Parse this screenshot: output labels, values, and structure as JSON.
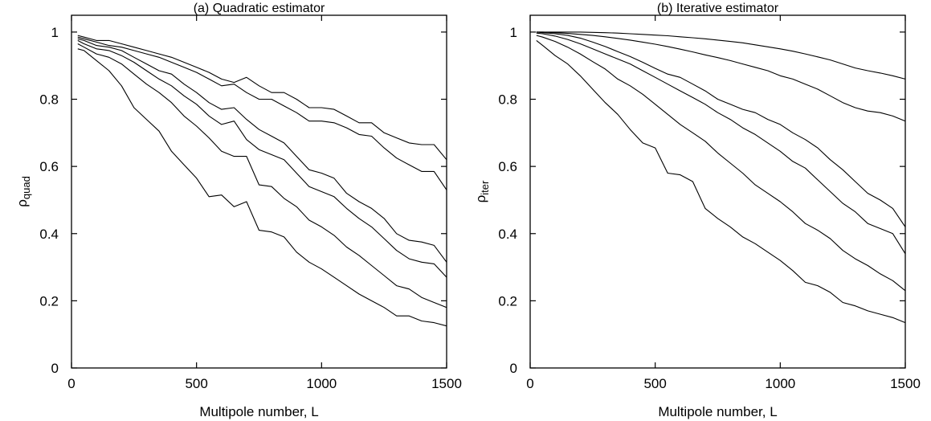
{
  "chart_data": [
    {
      "type": "line",
      "title": "(a) Quadratic estimator",
      "xlabel": "Multipole number, L",
      "ylabel": "ρ",
      "ylabel_sub": "quad",
      "xlim": [
        0,
        1500
      ],
      "ylim": [
        0,
        1.05
      ],
      "xticks": [
        0,
        500,
        1000,
        1500
      ],
      "yticks": [
        0,
        0.2,
        0.4,
        0.6,
        0.8,
        1
      ],
      "grid": false,
      "color": "#000000",
      "series": [
        {
          "x": [
            25,
            50,
            100,
            150,
            200,
            250,
            300,
            350,
            400,
            450,
            500,
            550,
            600,
            650,
            700,
            750,
            800,
            850,
            900,
            950,
            1000,
            1050,
            1100,
            1150,
            1200,
            1250,
            1300,
            1350,
            1400,
            1450,
            1500
          ],
          "y": [
            0.99,
            0.985,
            0.975,
            0.975,
            0.965,
            0.955,
            0.945,
            0.935,
            0.925,
            0.91,
            0.895,
            0.88,
            0.86,
            0.85,
            0.865,
            0.84,
            0.82,
            0.82,
            0.8,
            0.775,
            0.775,
            0.77,
            0.75,
            0.73,
            0.73,
            0.7,
            0.685,
            0.67,
            0.665,
            0.665,
            0.62
          ]
        },
        {
          "x": [
            25,
            50,
            100,
            150,
            200,
            250,
            300,
            350,
            400,
            450,
            500,
            550,
            600,
            650,
            700,
            750,
            800,
            850,
            900,
            950,
            1000,
            1050,
            1100,
            1150,
            1200,
            1250,
            1300,
            1350,
            1400,
            1450,
            1500
          ],
          "y": [
            0.985,
            0.98,
            0.97,
            0.96,
            0.955,
            0.945,
            0.935,
            0.925,
            0.91,
            0.895,
            0.88,
            0.86,
            0.84,
            0.845,
            0.82,
            0.8,
            0.8,
            0.78,
            0.76,
            0.735,
            0.735,
            0.73,
            0.715,
            0.695,
            0.69,
            0.655,
            0.625,
            0.605,
            0.585,
            0.585,
            0.53
          ]
        },
        {
          "x": [
            25,
            50,
            100,
            150,
            200,
            250,
            300,
            350,
            400,
            450,
            500,
            550,
            600,
            650,
            700,
            750,
            800,
            850,
            900,
            950,
            1000,
            1050,
            1100,
            1150,
            1200,
            1250,
            1300,
            1350,
            1400,
            1450,
            1500
          ],
          "y": [
            0.98,
            0.975,
            0.96,
            0.955,
            0.945,
            0.925,
            0.905,
            0.885,
            0.875,
            0.845,
            0.82,
            0.79,
            0.77,
            0.775,
            0.74,
            0.71,
            0.69,
            0.67,
            0.63,
            0.59,
            0.58,
            0.565,
            0.52,
            0.495,
            0.475,
            0.445,
            0.4,
            0.38,
            0.375,
            0.365,
            0.315
          ]
        },
        {
          "x": [
            25,
            50,
            100,
            150,
            200,
            250,
            300,
            350,
            400,
            450,
            500,
            550,
            600,
            650,
            700,
            750,
            800,
            850,
            900,
            950,
            1000,
            1050,
            1100,
            1150,
            1200,
            1250,
            1300,
            1350,
            1400,
            1450,
            1500
          ],
          "y": [
            0.975,
            0.965,
            0.95,
            0.945,
            0.93,
            0.91,
            0.885,
            0.86,
            0.84,
            0.81,
            0.785,
            0.75,
            0.725,
            0.735,
            0.68,
            0.65,
            0.635,
            0.62,
            0.58,
            0.54,
            0.525,
            0.51,
            0.475,
            0.445,
            0.42,
            0.385,
            0.35,
            0.325,
            0.315,
            0.31,
            0.27
          ]
        },
        {
          "x": [
            25,
            50,
            100,
            150,
            200,
            250,
            300,
            350,
            400,
            450,
            500,
            550,
            600,
            650,
            700,
            750,
            800,
            850,
            900,
            950,
            1000,
            1050,
            1100,
            1150,
            1200,
            1250,
            1300,
            1350,
            1400,
            1450,
            1500
          ],
          "y": [
            0.965,
            0.955,
            0.935,
            0.925,
            0.905,
            0.875,
            0.845,
            0.82,
            0.79,
            0.75,
            0.72,
            0.685,
            0.645,
            0.63,
            0.63,
            0.545,
            0.54,
            0.505,
            0.48,
            0.44,
            0.42,
            0.395,
            0.36,
            0.335,
            0.305,
            0.275,
            0.245,
            0.235,
            0.21,
            0.195,
            0.18
          ]
        },
        {
          "x": [
            25,
            50,
            100,
            150,
            200,
            250,
            300,
            350,
            400,
            450,
            500,
            550,
            600,
            650,
            700,
            750,
            800,
            850,
            900,
            950,
            1000,
            1050,
            1100,
            1150,
            1200,
            1250,
            1300,
            1350,
            1400,
            1450,
            1500
          ],
          "y": [
            0.95,
            0.945,
            0.915,
            0.885,
            0.84,
            0.775,
            0.74,
            0.705,
            0.645,
            0.605,
            0.565,
            0.51,
            0.515,
            0.48,
            0.495,
            0.41,
            0.405,
            0.39,
            0.345,
            0.315,
            0.295,
            0.27,
            0.245,
            0.22,
            0.2,
            0.18,
            0.155,
            0.155,
            0.14,
            0.135,
            0.125
          ]
        }
      ]
    },
    {
      "type": "line",
      "title": "(b) Iterative estimator",
      "xlabel": "Multipole number, L",
      "ylabel": "ρ",
      "ylabel_sub": "iter",
      "xlim": [
        0,
        1500
      ],
      "ylim": [
        0,
        1.05
      ],
      "xticks": [
        0,
        500,
        1000,
        1500
      ],
      "yticks": [
        0,
        0.2,
        0.4,
        0.6,
        0.8,
        1
      ],
      "grid": false,
      "color": "#000000",
      "series": [
        {
          "x": [
            25,
            50,
            100,
            150,
            200,
            250,
            300,
            350,
            400,
            450,
            500,
            550,
            600,
            650,
            700,
            750,
            800,
            850,
            900,
            950,
            1000,
            1050,
            1100,
            1150,
            1200,
            1250,
            1300,
            1350,
            1400,
            1450,
            1500
          ],
          "y": [
            1.0,
            1.0,
            1.0,
            1.0,
            1.0,
            0.999,
            0.998,
            0.997,
            0.995,
            0.993,
            0.991,
            0.989,
            0.986,
            0.983,
            0.98,
            0.976,
            0.972,
            0.968,
            0.962,
            0.956,
            0.95,
            0.943,
            0.935,
            0.926,
            0.917,
            0.905,
            0.893,
            0.885,
            0.878,
            0.87,
            0.86
          ]
        },
        {
          "x": [
            25,
            50,
            100,
            150,
            200,
            250,
            300,
            350,
            400,
            450,
            500,
            550,
            600,
            650,
            700,
            750,
            800,
            850,
            900,
            950,
            1000,
            1050,
            1100,
            1150,
            1200,
            1250,
            1300,
            1350,
            1400,
            1450,
            1500
          ],
          "y": [
            1.0,
            1.0,
            0.998,
            0.996,
            0.993,
            0.99,
            0.986,
            0.981,
            0.976,
            0.97,
            0.964,
            0.957,
            0.949,
            0.941,
            0.932,
            0.924,
            0.915,
            0.905,
            0.895,
            0.885,
            0.87,
            0.86,
            0.845,
            0.83,
            0.81,
            0.79,
            0.775,
            0.765,
            0.76,
            0.75,
            0.735
          ]
        },
        {
          "x": [
            25,
            50,
            100,
            150,
            200,
            250,
            300,
            350,
            400,
            450,
            500,
            550,
            600,
            650,
            700,
            750,
            800,
            850,
            900,
            950,
            1000,
            1050,
            1100,
            1150,
            1200,
            1250,
            1300,
            1350,
            1400,
            1450,
            1500
          ],
          "y": [
            1.0,
            0.998,
            0.995,
            0.99,
            0.982,
            0.97,
            0.957,
            0.942,
            0.927,
            0.91,
            0.892,
            0.875,
            0.865,
            0.845,
            0.825,
            0.8,
            0.785,
            0.77,
            0.76,
            0.74,
            0.725,
            0.7,
            0.68,
            0.655,
            0.62,
            0.59,
            0.555,
            0.52,
            0.5,
            0.475,
            0.42
          ]
        },
        {
          "x": [
            25,
            50,
            100,
            150,
            200,
            250,
            300,
            350,
            400,
            450,
            500,
            550,
            600,
            650,
            700,
            750,
            800,
            850,
            900,
            950,
            1000,
            1050,
            1100,
            1150,
            1200,
            1250,
            1300,
            1350,
            1400,
            1450,
            1500
          ],
          "y": [
            0.997,
            0.995,
            0.988,
            0.978,
            0.965,
            0.95,
            0.935,
            0.92,
            0.905,
            0.885,
            0.865,
            0.845,
            0.825,
            0.805,
            0.785,
            0.76,
            0.74,
            0.715,
            0.695,
            0.67,
            0.645,
            0.615,
            0.595,
            0.56,
            0.525,
            0.49,
            0.465,
            0.43,
            0.415,
            0.4,
            0.34
          ]
        },
        {
          "x": [
            25,
            50,
            100,
            150,
            200,
            250,
            300,
            350,
            400,
            450,
            500,
            550,
            600,
            650,
            700,
            750,
            800,
            850,
            900,
            950,
            1000,
            1050,
            1100,
            1150,
            1200,
            1250,
            1300,
            1350,
            1400,
            1450,
            1500
          ],
          "y": [
            0.99,
            0.985,
            0.972,
            0.955,
            0.935,
            0.912,
            0.89,
            0.86,
            0.84,
            0.815,
            0.785,
            0.755,
            0.725,
            0.7,
            0.675,
            0.64,
            0.61,
            0.58,
            0.545,
            0.52,
            0.495,
            0.465,
            0.43,
            0.41,
            0.385,
            0.35,
            0.325,
            0.305,
            0.28,
            0.26,
            0.23
          ]
        },
        {
          "x": [
            25,
            50,
            100,
            150,
            200,
            250,
            300,
            350,
            400,
            450,
            500,
            550,
            600,
            650,
            700,
            750,
            800,
            850,
            900,
            950,
            1000,
            1050,
            1100,
            1150,
            1200,
            1250,
            1300,
            1350,
            1400,
            1450,
            1500
          ],
          "y": [
            0.975,
            0.96,
            0.93,
            0.905,
            0.87,
            0.83,
            0.79,
            0.755,
            0.71,
            0.67,
            0.655,
            0.58,
            0.575,
            0.555,
            0.475,
            0.445,
            0.42,
            0.39,
            0.37,
            0.345,
            0.32,
            0.29,
            0.255,
            0.245,
            0.225,
            0.195,
            0.185,
            0.17,
            0.16,
            0.15,
            0.135
          ]
        }
      ]
    }
  ]
}
